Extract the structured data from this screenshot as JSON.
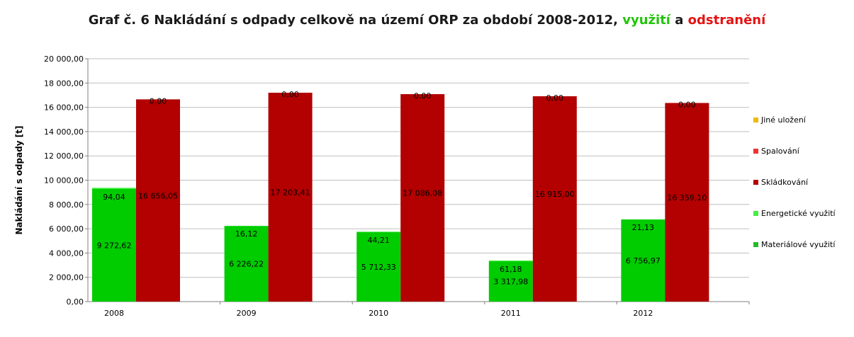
{
  "chart_data": {
    "type": "bar",
    "title_main": "Graf č. 6 Nakládání s odpady celkově na území ORP za období 2008-2012, ",
    "title_use": "využití",
    "title_and": " a ",
    "title_rem": "odstranění",
    "ylabel": "Nakládání s odpady [t]",
    "xlabel": "",
    "ylim": [
      0,
      20000
    ],
    "yticks": [
      "0,00",
      "2 000,00",
      "4 000,00",
      "6 000,00",
      "8 000,00",
      "10 000,00",
      "12 000,00",
      "14 000,00",
      "16 000,00",
      "18 000,00",
      "20 000,00"
    ],
    "categories": [
      "2008",
      "2009",
      "2010",
      "2011",
      "2012"
    ],
    "grid": true,
    "legend_position": "right",
    "legend": [
      {
        "name": "Jiné uložení",
        "color": "#f2b900"
      },
      {
        "name": "Spalování",
        "color": "#ee3333"
      },
      {
        "name": "Skládkování",
        "color": "#b30000"
      },
      {
        "name": "Energetické využití",
        "color": "#44ee44"
      },
      {
        "name": "Materiálové využití",
        "color": "#22bb22"
      }
    ],
    "stacks": [
      {
        "name": "využití",
        "series": [
          {
            "name": "Materiálové využití",
            "color": "#00cc00",
            "values": [
              9272.62,
              6226.22,
              5712.33,
              3317.98,
              6756.97
            ],
            "labels": [
              "9 272,62",
              "6 226,22",
              "5 712,33",
              "3 317,98",
              "6 756,97"
            ]
          },
          {
            "name": "Energetické využití",
            "color": "#33ee33",
            "values": [
              94.04,
              16.12,
              44.21,
              61.18,
              21.13
            ],
            "labels": [
              "94,04",
              "16,12",
              "44,21",
              "61,18",
              "21,13"
            ]
          }
        ]
      },
      {
        "name": "odstranění",
        "series": [
          {
            "name": "Skládkování",
            "color": "#b30000",
            "values": [
              16656.05,
              17203.41,
              17086.08,
              16915.0,
              16359.1
            ],
            "labels": [
              "16 656,05",
              "17 203,41",
              "17 086,08",
              "16 915,00",
              "16 359,10"
            ]
          },
          {
            "name": "Spalování",
            "color": "#ee3333",
            "values": [
              0,
              0,
              0,
              0,
              0
            ],
            "labels": [
              "0,00",
              "0,00",
              "0,00",
              "0,00",
              "0,00"
            ]
          },
          {
            "name": "Jiné uložení",
            "color": "#f2b900",
            "values": [
              0,
              0,
              0,
              0,
              0
            ],
            "labels": []
          }
        ]
      }
    ]
  }
}
